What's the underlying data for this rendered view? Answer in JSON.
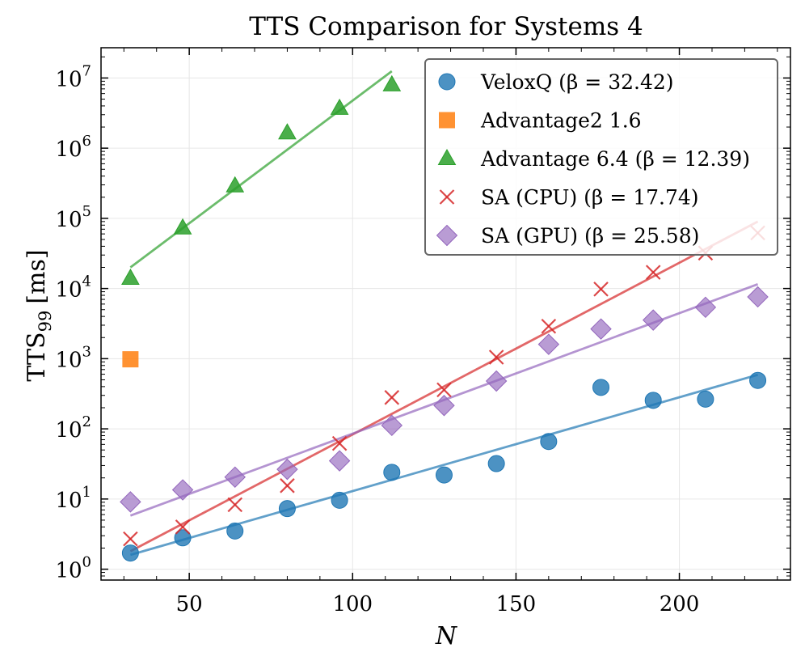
{
  "chart_data": {
    "type": "scatter",
    "title": "TTS Comparison for Systems 4",
    "xlabel": "N",
    "ylabel": {
      "main": "TTS",
      "sub": "99",
      "unit": "[ms]"
    },
    "x_ticks": [
      50,
      100,
      150,
      200
    ],
    "y_ticks": [
      {
        "value": 1,
        "base": "10",
        "exp": "0"
      },
      {
        "value": 10,
        "base": "10",
        "exp": "1"
      },
      {
        "value": 100,
        "base": "10",
        "exp": "2"
      },
      {
        "value": 1000,
        "base": "10",
        "exp": "3"
      },
      {
        "value": 10000,
        "base": "10",
        "exp": "4"
      },
      {
        "value": 100000,
        "base": "10",
        "exp": "5"
      },
      {
        "value": 1000000,
        "base": "10",
        "exp": "6"
      },
      {
        "value": 10000000,
        "base": "10",
        "exp": "7"
      }
    ],
    "xlim": [
      23,
      234
    ],
    "ylim": [
      0.7,
      27000000
    ],
    "yscale": "log",
    "grid": true,
    "legend_position": "top-right",
    "series": [
      {
        "name": "VeloxQ (β = 32.42)",
        "marker": "circle",
        "color": "#1f77b4",
        "x": [
          32,
          48,
          64,
          80,
          96,
          112,
          128,
          144,
          160,
          176,
          192,
          208,
          224
        ],
        "y": [
          1.7,
          2.8,
          3.5,
          7.3,
          9.6,
          24,
          22,
          32,
          66,
          390,
          255,
          265,
          490
        ],
        "fit": {
          "x": [
            32,
            224
          ],
          "y": [
            1.6,
            590
          ]
        }
      },
      {
        "name": "Advantage2 1.6",
        "marker": "square",
        "color": "#ff7f0e",
        "x": [
          32
        ],
        "y": [
          980
        ]
      },
      {
        "name": "Advantage 6.4 (β = 12.39)",
        "marker": "triangle",
        "color": "#2ca02c",
        "x": [
          32,
          48,
          64,
          80,
          96,
          112
        ],
        "y": [
          14000,
          73000,
          290000,
          1650000,
          3700000,
          8000000
        ],
        "fit": {
          "x": [
            32,
            112
          ],
          "y": [
            20000,
            12500000
          ]
        }
      },
      {
        "name": "SA (CPU) (β = 17.74)",
        "marker": "x",
        "color": "#d62728",
        "x": [
          32,
          48,
          64,
          80,
          96,
          112,
          128,
          144,
          160,
          176,
          192,
          208,
          224
        ],
        "y": [
          2.7,
          4.0,
          8.3,
          15.5,
          62,
          280,
          360,
          1050,
          2900,
          9800,
          17000,
          32000,
          62000
        ],
        "fit": {
          "x": [
            32,
            224
          ],
          "y": [
            1.8,
            90000
          ]
        }
      },
      {
        "name": "SA (GPU) (β = 25.58)",
        "marker": "diamond",
        "color": "#9467bd",
        "x": [
          32,
          48,
          64,
          80,
          96,
          112,
          128,
          144,
          160,
          176,
          192,
          208,
          224
        ],
        "y": [
          9.1,
          13.5,
          20.5,
          26.5,
          35,
          112,
          215,
          480,
          1600,
          2650,
          3550,
          5400,
          7600
        ],
        "fit": {
          "x": [
            32,
            224
          ],
          "y": [
            5.8,
            11500
          ]
        }
      }
    ]
  }
}
